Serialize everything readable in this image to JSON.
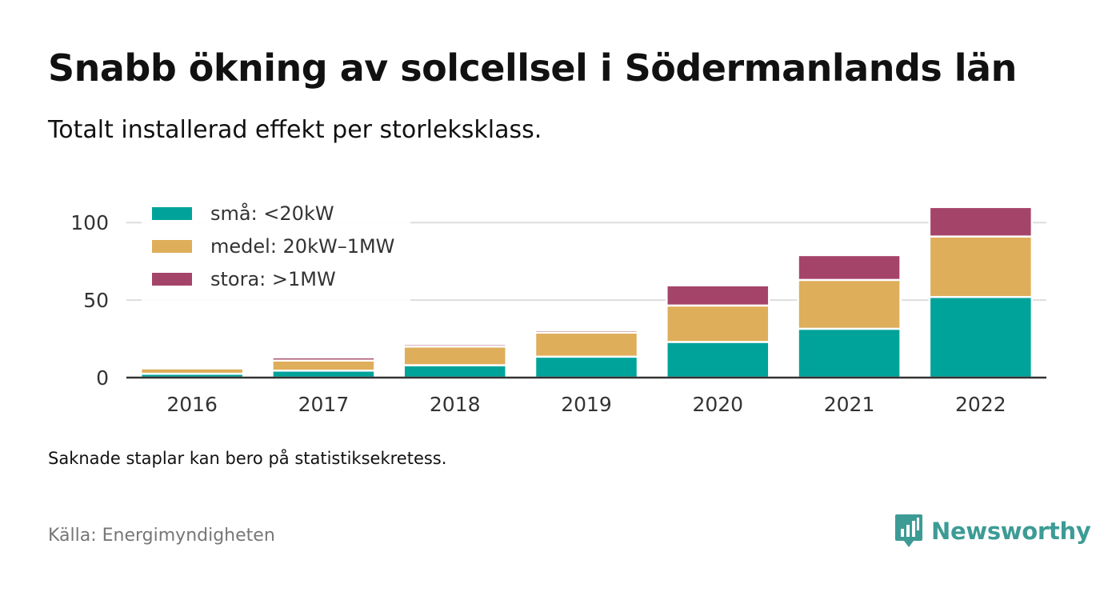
{
  "header": {
    "title": "Snabb ökning av solcellsel i Södermanlands län",
    "subtitle": "Totalt installerad effekt per storleksklass."
  },
  "chart_data": {
    "type": "bar",
    "stacked": true,
    "title": "Snabb ökning av solcellsel i Södermanlands län",
    "subtitle": "Totalt installerad effekt per storleksklass.",
    "xlabel": "",
    "ylabel": "",
    "categories": [
      "2016",
      "2017",
      "2018",
      "2019",
      "2020",
      "2021",
      "2022"
    ],
    "series": [
      {
        "name": "små: <20kW",
        "color": "#00a39a",
        "values": [
          2.5,
          4.5,
          8,
          13.5,
          23,
          31.5,
          52
        ]
      },
      {
        "name": "medel: 20kW–1MW",
        "color": "#deae5b",
        "values": [
          3.5,
          6.5,
          12,
          15.5,
          23.5,
          31.5,
          39
        ]
      },
      {
        "name": "stora: >1MW",
        "color": "#a54469",
        "values": [
          0.3,
          2,
          1.5,
          1.5,
          13,
          16,
          19
        ]
      }
    ],
    "ylim": [
      0,
      110
    ],
    "yticks": [
      0,
      50,
      100
    ],
    "grid": true,
    "legend_position": "top-left"
  },
  "footer": {
    "note": "Saknade staplar kan bero på statistiksekretess.",
    "source": "Källa: Energimyndigheten",
    "brand": "Newsworthy"
  },
  "colors": {
    "brand": "#3d9b95",
    "grid": "#dddddd",
    "axis": "#333333"
  }
}
